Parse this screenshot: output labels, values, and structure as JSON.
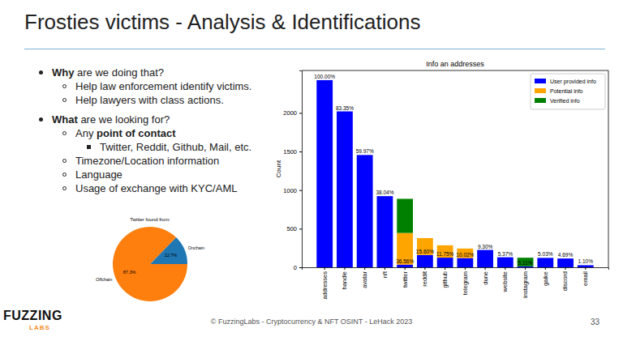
{
  "slide": {
    "title": "Frosties victims - Analysis & Identifications",
    "bullets": [
      {
        "runs": [
          {
            "text": "Why",
            "bold": true
          },
          {
            "text": " are we doing that?"
          }
        ],
        "items": [
          {
            "runs": [
              {
                "text": "Help law enforcement identify victims."
              }
            ]
          },
          {
            "runs": [
              {
                "text": "Help lawyers with class actions."
              }
            ]
          }
        ]
      },
      {
        "runs": [
          {
            "text": "What",
            "bold": true
          },
          {
            "text": " are we looking for?"
          }
        ],
        "items": [
          {
            "runs": [
              {
                "text": "Any "
              },
              {
                "text": "point of contact",
                "bold": true
              }
            ],
            "items": [
              {
                "runs": [
                  {
                    "text": "Twitter, Reddit, Github, Mail, etc."
                  }
                ]
              }
            ]
          },
          {
            "runs": [
              {
                "text": "Timezone/Location information"
              }
            ]
          },
          {
            "runs": [
              {
                "text": "Language"
              }
            ]
          },
          {
            "runs": [
              {
                "text": "Usage of exchange with KYC/AML"
              }
            ]
          }
        ]
      }
    ],
    "footer": "© FuzzingLabs - Cryptocurrency & NFT OSINT - LeHack 2023",
    "page_number": 33,
    "logo": {
      "text": "FUZZING",
      "sub": "LABS"
    }
  },
  "chart_data": [
    {
      "type": "bar",
      "title": "Info an addresses",
      "y_label": "Count",
      "categories": [
        "addresses",
        "handle",
        "avatar",
        "nft",
        "twitter",
        "reddit",
        "github",
        "telegram",
        "dune",
        "website",
        "instagram",
        "gaike",
        "discord",
        "email"
      ],
      "series": [
        {
          "name": "User provided info",
          "color": "#0000ff",
          "values": [
            2425,
            2020,
            1455,
            922,
            35,
            160,
            125,
            120,
            225,
            130,
            12,
            122,
            114,
            27
          ]
        },
        {
          "name": "Potential info",
          "color": "#ffa500",
          "values": [
            0,
            0,
            0,
            0,
            410,
            218,
            160,
            123,
            0,
            0,
            0,
            0,
            0,
            0
          ]
        },
        {
          "name": "Verified info",
          "color": "#008000",
          "values": [
            0,
            0,
            0,
            0,
            442,
            0,
            0,
            0,
            0,
            0,
            112,
            0,
            0,
            0
          ]
        }
      ],
      "annotations": [
        "100.00%",
        "83.35%",
        "59.97%",
        "38.04%",
        "36.56%",
        "15.60%",
        "11.75%",
        "10.02%",
        "9.30%",
        "5.37%",
        "5.11%",
        "5.03%",
        "4.69%",
        "1.10%"
      ],
      "stacked": true,
      "ylim": [
        0,
        2550
      ],
      "yticks": [
        0,
        500,
        1000,
        1500,
        2000
      ],
      "legend": "upper right"
    },
    {
      "type": "pie",
      "title": "Twitter found from:",
      "categories": [
        "Onchain",
        "Offchain"
      ],
      "values": [
        12.7,
        87.3
      ],
      "value_labels": [
        "12.7%",
        "87.3%"
      ],
      "colors": [
        "#1f77b4",
        "#ff7f0e"
      ],
      "data_labels": true
    }
  ]
}
